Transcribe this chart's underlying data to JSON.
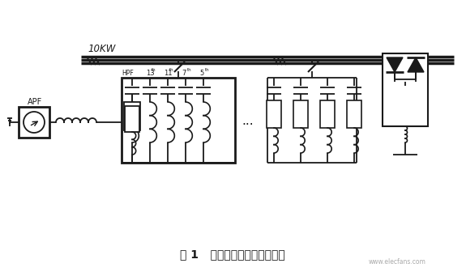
{
  "title": "图 1   补偿与滤波装置的主电路",
  "bg_color": "#ffffff",
  "line_color": "#1a1a1a",
  "bus_label": "10KW",
  "apf_label": "APF",
  "dots": "...",
  "watermark": "www.elecfans.com",
  "figsize": [
    5.75,
    3.36
  ],
  "dpi": 100
}
